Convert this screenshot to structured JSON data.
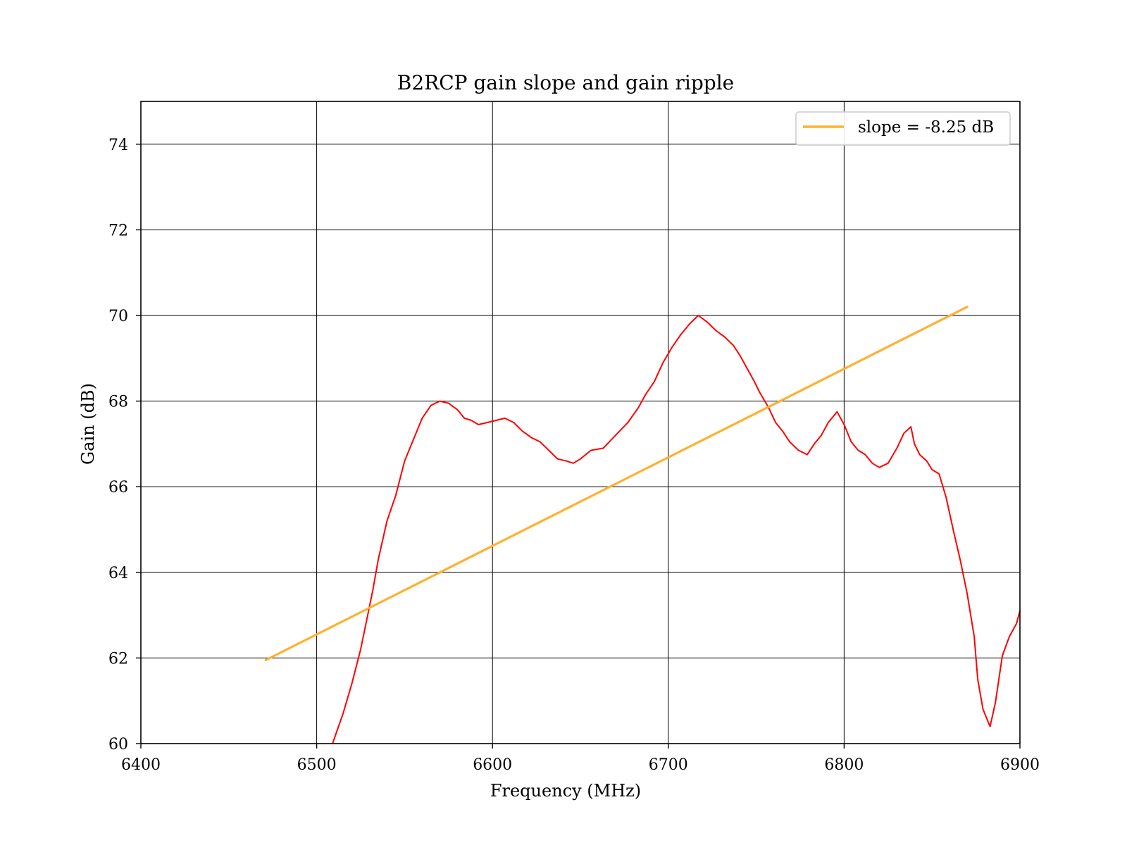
{
  "chart_data": {
    "type": "line",
    "title": "B2RCP gain slope and gain ripple",
    "xlabel": "Frequency (MHz)",
    "ylabel": "Gain (dB)",
    "xlim": [
      6400,
      6900
    ],
    "ylim": [
      60,
      75
    ],
    "x_ticks": [
      6400,
      6500,
      6600,
      6700,
      6800,
      6900
    ],
    "y_ticks": [
      60,
      62,
      64,
      66,
      68,
      70,
      72,
      74
    ],
    "grid": true,
    "legend": {
      "placement": "top-right",
      "entries": [
        "slope = -8.25 dB"
      ]
    },
    "series": [
      {
        "color": "#ff0000",
        "x": [
          6509,
          6515,
          6520,
          6525,
          6528,
          6532,
          6535,
          6540,
          6545,
          6550,
          6555,
          6560,
          6565,
          6570,
          6575,
          6580,
          6584,
          6588,
          6592,
          6597,
          6602,
          6607,
          6612,
          6617,
          6622,
          6627,
          6632,
          6637,
          6642,
          6646,
          6650,
          6656,
          6663,
          6670,
          6677,
          6683,
          6687,
          6692,
          6697,
          6702,
          6707,
          6712,
          6717,
          6722,
          6727,
          6732,
          6737,
          6741,
          6745,
          6749,
          6752,
          6757,
          6761,
          6765,
          6769,
          6774,
          6779,
          6783,
          6787,
          6791,
          6796,
          6800,
          6804,
          6808,
          6812,
          6816,
          6820,
          6825,
          6830,
          6834,
          6838,
          6840,
          6843,
          6847,
          6850,
          6854,
          6858,
          6862,
          6866,
          6870,
          6874,
          6876,
          6879,
          6883,
          6886,
          6890,
          6894,
          6898,
          6900
        ],
        "y": [
          60.0,
          60.7,
          61.4,
          62.2,
          62.8,
          63.6,
          64.3,
          65.2,
          65.8,
          66.6,
          67.1,
          67.6,
          67.9,
          68.0,
          67.95,
          67.8,
          67.6,
          67.55,
          67.45,
          67.5,
          67.55,
          67.6,
          67.5,
          67.3,
          67.15,
          67.05,
          66.85,
          66.65,
          66.6,
          66.55,
          66.65,
          66.85,
          66.9,
          67.2,
          67.5,
          67.85,
          68.15,
          68.45,
          68.9,
          69.25,
          69.55,
          69.8,
          70.0,
          69.85,
          69.65,
          69.5,
          69.3,
          69.05,
          68.75,
          68.45,
          68.2,
          67.85,
          67.5,
          67.3,
          67.05,
          66.85,
          66.75,
          67.0,
          67.2,
          67.5,
          67.75,
          67.45,
          67.05,
          66.85,
          66.75,
          66.55,
          66.45,
          66.55,
          66.9,
          67.25,
          67.4,
          67.0,
          66.75,
          66.6,
          66.4,
          66.3,
          65.75,
          65.0,
          64.3,
          63.5,
          62.5,
          61.5,
          60.8,
          60.4,
          60.95,
          62.05,
          62.5,
          62.8,
          63.1
        ]
      },
      {
        "name": "slope = -8.25 dB",
        "color": "#ffb12f",
        "x": [
          6471,
          6870
        ],
        "y": [
          61.95,
          70.2
        ]
      }
    ]
  }
}
